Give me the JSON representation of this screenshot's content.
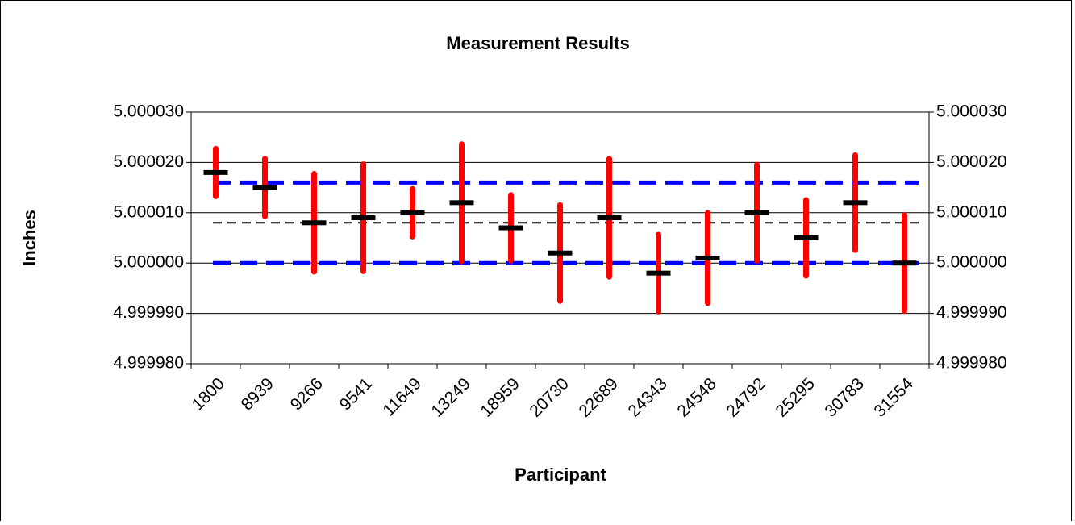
{
  "chart_data": {
    "type": "errorbar",
    "title": "Measurement Results",
    "x_label": "Participant",
    "y_label": "Inches",
    "categories": [
      "1800",
      "8939",
      "9266",
      "9541",
      "11649",
      "13249",
      "18959",
      "20730",
      "22689",
      "24343",
      "24548",
      "24792",
      "25295",
      "30783",
      "31554"
    ],
    "values": [
      5.000018,
      5.000015,
      5.000008,
      5.000009,
      5.00001,
      5.000012,
      5.000007,
      5.000002,
      5.000009,
      4.999998,
      5.000001,
      5.00001,
      5.000005,
      5.000012,
      5.0
    ],
    "errors": [
      5.3e-06,
      6.3e-06,
      1.03e-05,
      1.12e-05,
      5.3e-06,
      1.22e-05,
      7.1e-06,
      1.01e-05,
      1.23e-05,
      8.2e-06,
      9.5e-06,
      1.01e-05,
      8.1e-06,
      1e-05,
      1.01e-05
    ],
    "color": "#000000",
    "error_color": "#ff0000",
    "reference_lines": [
      {
        "value": 5.000016,
        "color": "#0000ff"
      },
      {
        "value": 5.0,
        "color": "#0000ff"
      },
      {
        "value": 5.000008,
        "color": "#000000"
      }
    ],
    "ylim": [
      4.99998,
      5.00003
    ],
    "yticks": [
      {
        "value": 4.99998,
        "label": "4.999980"
      },
      {
        "value": 4.99999,
        "label": "4.999990"
      },
      {
        "value": 5.0,
        "label": "5.000000"
      },
      {
        "value": 5.00001,
        "label": "5.000010"
      },
      {
        "value": 5.00002,
        "label": "5.000020"
      },
      {
        "value": 5.00003,
        "label": "5.000030"
      }
    ],
    "y2lim": [
      4.99998,
      5.00003
    ],
    "y2ticks": [
      {
        "value": 4.99998,
        "label": "4.999980"
      },
      {
        "value": 4.99999,
        "label": "4.999990"
      },
      {
        "value": 5.0,
        "label": "5.000000"
      },
      {
        "value": 5.00001,
        "label": "5.000010"
      },
      {
        "value": 5.00002,
        "label": "5.000020"
      },
      {
        "value": 5.00003,
        "label": "5.000030"
      }
    ],
    "grid": true
  }
}
